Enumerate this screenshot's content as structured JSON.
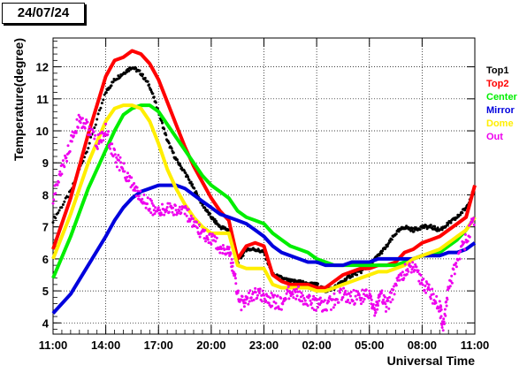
{
  "date_label": "24/07/24",
  "chart_data": {
    "type": "line",
    "title": "",
    "xlabel": "Universal Time",
    "ylabel": "Temperature(degree)",
    "x_tick_labels": [
      "11:00",
      "14:00",
      "17:00",
      "20:00",
      "23:00",
      "02:00",
      "05:00",
      "08:00",
      "11:00"
    ],
    "x_tick_hours": [
      0,
      3,
      6,
      9,
      12,
      15,
      18,
      21,
      24
    ],
    "xlim_hours": [
      0,
      24
    ],
    "ylim": [
      3.65,
      12.9
    ],
    "y_ticks": [
      4,
      5,
      6,
      7,
      8,
      9,
      10,
      11,
      12
    ],
    "grid": true,
    "legend_position": "right",
    "series": [
      {
        "name": "Top1",
        "color": "#000000",
        "style": "dots",
        "x": [
          0,
          1,
          2,
          3,
          3.5,
          4,
          4.5,
          5,
          5.5,
          6,
          6.5,
          7,
          7.5,
          8,
          8.5,
          9,
          9.5,
          10,
          10.5,
          11,
          11.5,
          12,
          12.5,
          13,
          13.5,
          14,
          14.5,
          15,
          15.5,
          16,
          16.5,
          17,
          17.5,
          18,
          18.5,
          19,
          19.5,
          20,
          20.5,
          21,
          21.5,
          22,
          22.5,
          23,
          23.5,
          24
        ],
        "y": [
          7.2,
          8.1,
          9.5,
          11.2,
          11.6,
          11.8,
          12.0,
          11.8,
          11.4,
          10.6,
          9.7,
          9.1,
          8.7,
          8.2,
          7.7,
          7.3,
          7.0,
          6.9,
          5.9,
          6.3,
          6.3,
          6.2,
          5.5,
          5.4,
          5.3,
          5.3,
          5.2,
          5.2,
          5.0,
          5.1,
          5.3,
          5.5,
          5.6,
          5.8,
          6.1,
          6.4,
          6.8,
          7.0,
          6.9,
          7.0,
          7.0,
          6.9,
          7.1,
          7.3,
          7.6,
          8.2
        ]
      },
      {
        "name": "Top2",
        "color": "#ff0000",
        "style": "line",
        "x": [
          0,
          1,
          2,
          3,
          3.5,
          4,
          4.5,
          5,
          5.5,
          6,
          6.5,
          7,
          7.5,
          8,
          8.5,
          9,
          9.5,
          10,
          10.5,
          11,
          11.5,
          12,
          12.5,
          13,
          13.5,
          14,
          14.5,
          15,
          15.5,
          16,
          16.5,
          17,
          17.5,
          18,
          18.5,
          19,
          19.5,
          20,
          20.5,
          21,
          21.5,
          22,
          22.5,
          23,
          23.5,
          24
        ],
        "y": [
          6.3,
          7.9,
          9.9,
          11.7,
          12.2,
          12.3,
          12.5,
          12.4,
          12.1,
          11.6,
          10.9,
          10.2,
          9.5,
          8.9,
          8.4,
          7.9,
          7.5,
          7.2,
          6.0,
          6.4,
          6.5,
          6.4,
          5.5,
          5.3,
          5.2,
          5.2,
          5.2,
          5.1,
          5.1,
          5.3,
          5.5,
          5.6,
          5.7,
          5.7,
          5.8,
          5.8,
          5.9,
          6.2,
          6.3,
          6.5,
          6.6,
          6.7,
          6.9,
          7.1,
          7.3,
          8.3
        ]
      },
      {
        "name": "Center",
        "color": "#00ee00",
        "style": "line",
        "x": [
          0,
          1,
          2,
          3,
          3.5,
          4,
          4.5,
          5,
          5.5,
          6,
          6.5,
          7,
          7.5,
          8,
          8.5,
          9,
          9.5,
          10,
          10.5,
          11,
          11.5,
          12,
          12.5,
          13,
          13.5,
          14,
          14.5,
          15,
          15.5,
          16,
          16.5,
          17,
          17.5,
          18,
          18.5,
          19,
          19.5,
          20,
          20.5,
          21,
          21.5,
          22,
          22.5,
          23,
          23.5,
          24
        ],
        "y": [
          5.4,
          6.7,
          8.2,
          9.4,
          10.0,
          10.5,
          10.7,
          10.8,
          10.8,
          10.6,
          10.2,
          9.8,
          9.4,
          9.0,
          8.6,
          8.3,
          8.1,
          7.9,
          7.5,
          7.3,
          7.2,
          7.1,
          6.8,
          6.6,
          6.4,
          6.3,
          6.2,
          6.0,
          5.9,
          5.8,
          5.8,
          5.8,
          5.8,
          5.8,
          5.8,
          5.8,
          5.8,
          5.9,
          6.0,
          6.1,
          6.1,
          6.2,
          6.4,
          6.6,
          6.9,
          7.3
        ]
      },
      {
        "name": "Mirror",
        "color": "#0000dd",
        "style": "line",
        "x": [
          0,
          1,
          2,
          3,
          3.5,
          4,
          4.5,
          5,
          5.5,
          6,
          6.5,
          7,
          7.5,
          8,
          8.5,
          9,
          9.5,
          10,
          10.5,
          11,
          11.5,
          12,
          12.5,
          13,
          13.5,
          14,
          14.5,
          15,
          15.5,
          16,
          16.5,
          17,
          17.5,
          18,
          18.5,
          19,
          19.5,
          20,
          20.5,
          21,
          21.5,
          22,
          22.5,
          23,
          23.5,
          24
        ],
        "y": [
          4.3,
          4.9,
          5.8,
          6.7,
          7.2,
          7.6,
          7.9,
          8.1,
          8.2,
          8.3,
          8.3,
          8.3,
          8.2,
          8.0,
          7.8,
          7.6,
          7.4,
          7.3,
          7.2,
          7.1,
          6.9,
          6.7,
          6.4,
          6.2,
          6.1,
          6.0,
          5.9,
          5.9,
          5.8,
          5.8,
          5.8,
          5.9,
          5.9,
          5.9,
          6.0,
          6.0,
          6.0,
          6.0,
          6.0,
          6.1,
          6.1,
          6.1,
          6.2,
          6.2,
          6.3,
          6.5
        ]
      },
      {
        "name": "Dome",
        "color": "#ffee00",
        "style": "line",
        "x": [
          0,
          1,
          2,
          3,
          3.5,
          4,
          4.5,
          5,
          5.5,
          6,
          6.5,
          7,
          7.5,
          8,
          8.5,
          9,
          9.5,
          10,
          10.5,
          11,
          11.5,
          12,
          12.5,
          13,
          13.5,
          14,
          14.5,
          15,
          15.5,
          16,
          16.5,
          17,
          17.5,
          18,
          18.5,
          19,
          19.5,
          20,
          20.5,
          21,
          21.5,
          22,
          22.5,
          23,
          23.5,
          24
        ],
        "y": [
          6.0,
          7.4,
          9.0,
          10.3,
          10.7,
          10.8,
          10.8,
          10.7,
          10.3,
          9.6,
          8.8,
          8.2,
          7.7,
          7.3,
          7.0,
          6.8,
          6.8,
          6.8,
          5.8,
          5.7,
          5.7,
          5.7,
          5.2,
          5.1,
          5.1,
          5.1,
          5.1,
          5.0,
          5.0,
          5.1,
          5.2,
          5.3,
          5.4,
          5.5,
          5.6,
          5.6,
          5.7,
          5.8,
          6.0,
          6.1,
          6.2,
          6.3,
          6.5,
          6.7,
          6.9,
          7.3
        ]
      },
      {
        "name": "Out",
        "color": "#ee00ee",
        "style": "dots",
        "x": [
          0,
          0.5,
          1,
          1.5,
          2,
          2.5,
          3,
          3.5,
          4,
          4.5,
          5,
          5.5,
          6,
          6.5,
          7,
          7.5,
          8,
          8.5,
          9,
          9.5,
          10,
          10.3,
          10.6,
          11,
          11.5,
          12,
          12.5,
          13,
          13.5,
          14,
          14.5,
          15,
          15.5,
          16,
          16.5,
          17,
          17.5,
          18,
          18.3,
          18.6,
          19,
          19.5,
          20,
          20.5,
          21,
          21.5,
          22,
          22.2,
          22.5,
          23,
          23.5,
          24
        ],
        "y": [
          7.9,
          8.8,
          9.6,
          10.4,
          10.1,
          9.6,
          10.0,
          9.2,
          8.8,
          8.3,
          7.9,
          7.7,
          7.4,
          7.6,
          7.5,
          7.6,
          7.0,
          6.8,
          6.6,
          6.4,
          6.2,
          5.6,
          4.6,
          4.7,
          4.9,
          4.8,
          4.7,
          4.6,
          5.0,
          4.9,
          4.7,
          4.6,
          4.5,
          4.7,
          4.9,
          4.8,
          4.8,
          4.9,
          4.3,
          4.9,
          4.5,
          5.2,
          5.6,
          5.7,
          5.3,
          4.9,
          4.5,
          3.9,
          5.0,
          6.0,
          6.6,
          7.3
        ]
      }
    ]
  }
}
